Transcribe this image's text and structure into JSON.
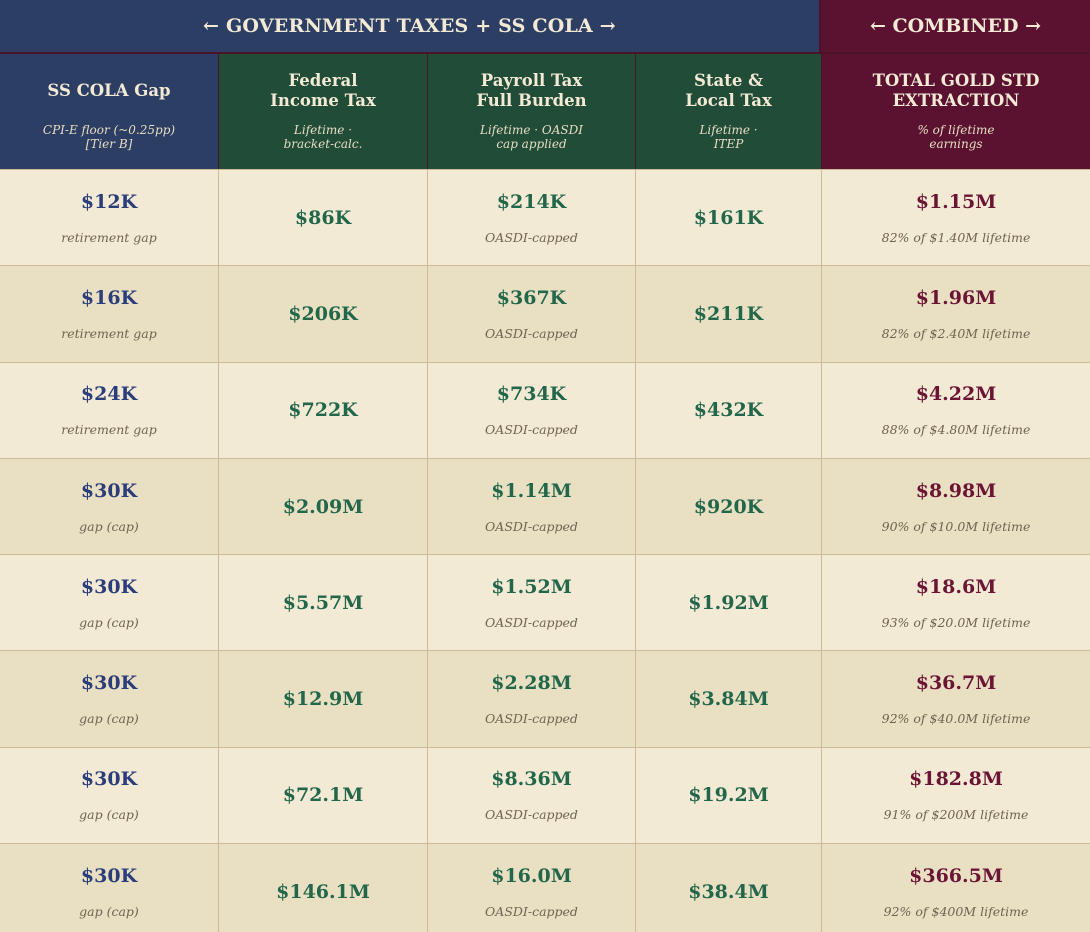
{
  "banner": {
    "left": "← GOVERNMENT TAXES + SS COLA →",
    "right": "← COMBINED →"
  },
  "headers": [
    {
      "title": "SS COLA Gap",
      "sub": "CPI-E floor (~0.25pp)\n[Tier B]"
    },
    {
      "title": "Federal\nIncome Tax",
      "sub": "Lifetime ·\nbracket-calc."
    },
    {
      "title": "Payroll Tax\nFull Burden",
      "sub": "Lifetime · OASDI\ncap applied"
    },
    {
      "title": "State &\nLocal Tax",
      "sub": "Lifetime ·\nITEP"
    },
    {
      "title": "TOTAL GOLD STD\nEXTRACTION",
      "sub": "% of lifetime\nearnings"
    }
  ],
  "rows": [
    {
      "gap": "$12K",
      "gap_note": "retirement gap",
      "fed": "$86K",
      "payroll": "$214K",
      "payroll_note": "OASDI-capped",
      "state": "$161K",
      "total": "$1.15M",
      "total_note": "82% of $1.40M lifetime"
    },
    {
      "gap": "$16K",
      "gap_note": "retirement gap",
      "fed": "$206K",
      "payroll": "$367K",
      "payroll_note": "OASDI-capped",
      "state": "$211K",
      "total": "$1.96M",
      "total_note": "82% of $2.40M lifetime"
    },
    {
      "gap": "$24K",
      "gap_note": "retirement gap",
      "fed": "$722K",
      "payroll": "$734K",
      "payroll_note": "OASDI-capped",
      "state": "$432K",
      "total": "$4.22M",
      "total_note": "88% of $4.80M lifetime"
    },
    {
      "gap": "$30K",
      "gap_note": "gap (cap)",
      "fed": "$2.09M",
      "payroll": "$1.14M",
      "payroll_note": "OASDI-capped",
      "state": "$920K",
      "total": "$8.98M",
      "total_note": "90% of $10.0M lifetime"
    },
    {
      "gap": "$30K",
      "gap_note": "gap (cap)",
      "fed": "$5.57M",
      "payroll": "$1.52M",
      "payroll_note": "OASDI-capped",
      "state": "$1.92M",
      "total": "$18.6M",
      "total_note": "93% of $20.0M lifetime"
    },
    {
      "gap": "$30K",
      "gap_note": "gap (cap)",
      "fed": "$12.9M",
      "payroll": "$2.28M",
      "payroll_note": "OASDI-capped",
      "state": "$3.84M",
      "total": "$36.7M",
      "total_note": "92% of $40.0M lifetime"
    },
    {
      "gap": "$30K",
      "gap_note": "gap (cap)",
      "fed": "$72.1M",
      "payroll": "$8.36M",
      "payroll_note": "OASDI-capped",
      "state": "$19.2M",
      "total": "$182.8M",
      "total_note": "91% of $200M lifetime"
    },
    {
      "gap": "$30K",
      "gap_note": "gap (cap)",
      "fed": "$146.1M",
      "payroll": "$16.0M",
      "payroll_note": "OASDI-capped",
      "state": "$38.4M",
      "total": "$366.5M",
      "total_note": "92% of $400M lifetime"
    }
  ],
  "colors": {
    "navy": "#2c3e63",
    "green": "#204c38",
    "maroon": "#5a1230",
    "cream": "#f3ead6"
  }
}
